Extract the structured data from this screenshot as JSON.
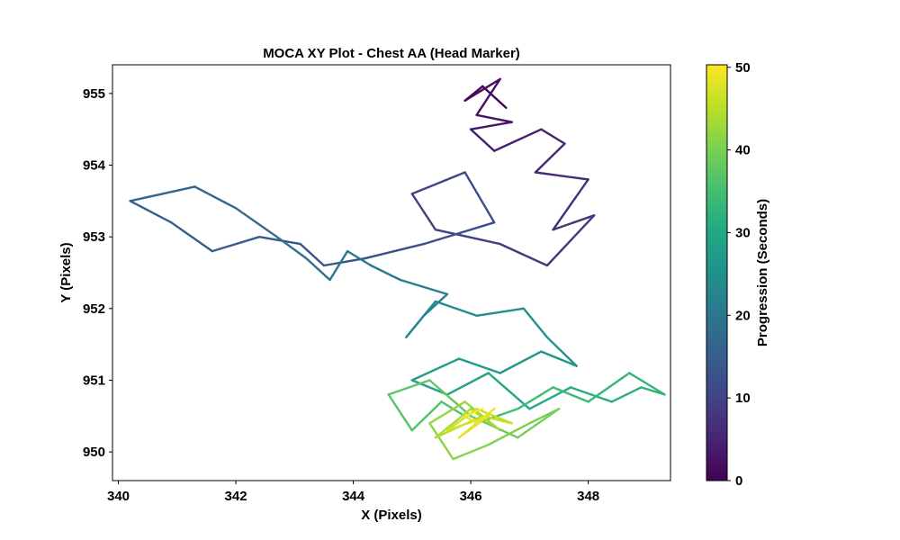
{
  "chart_data": {
    "type": "line",
    "title": "MOCA XY Plot - Chest AA (Head Marker)",
    "xlabel": "X (Pixels)",
    "ylabel": "Y (Pixels)",
    "xlim": [
      339.9,
      349.4
    ],
    "ylim": [
      949.6,
      955.4
    ],
    "x_ticks": [
      340,
      342,
      344,
      346,
      348
    ],
    "y_ticks": [
      950,
      951,
      952,
      953,
      954,
      955
    ],
    "grid": false,
    "colorbar": {
      "label": "Progression (Seconds)",
      "range": [
        0,
        50.3
      ],
      "ticks": [
        0,
        10,
        20,
        30,
        40,
        50
      ],
      "colormap": "viridis"
    },
    "series": [
      {
        "time_values": [
          0,
          0.6,
          1.2,
          1.8,
          2.4,
          3.0,
          3.6,
          4.2,
          4.8,
          5.4,
          6.0,
          6.6,
          7.2,
          7.8,
          8.4,
          9.0,
          9.6,
          10.2,
          10.8,
          11.4,
          12.0,
          12.6,
          13.2,
          13.8,
          14.4,
          15.0,
          15.6,
          16.2,
          16.8,
          17.4,
          18.0,
          18.6,
          19.2,
          19.8,
          20.4,
          21.0,
          21.6,
          22.2,
          22.8,
          23.4,
          24.0,
          24.6,
          25.2,
          25.8,
          26.4,
          27.0,
          27.6,
          28.2,
          28.8,
          29.4,
          30.0,
          30.6,
          31.2,
          31.8,
          32.4,
          33.0,
          33.6,
          34.2,
          34.8,
          35.4,
          36.0,
          36.6,
          37.2,
          37.8,
          38.4,
          39.0,
          39.6,
          40.2,
          40.8,
          41.4,
          42.0,
          42.6,
          43.2,
          43.8,
          44.4,
          45.0,
          45.6,
          46.2,
          46.8,
          47.4,
          48.0,
          48.6,
          49.2,
          49.8,
          50.3
        ],
        "x_values": [
          346.6,
          346.2,
          345.9,
          346.5,
          346.1,
          346.7,
          346.0,
          346.4,
          347.2,
          347.6,
          347.1,
          348.0,
          347.4,
          348.1,
          347.3,
          346.5,
          345.4,
          345.0,
          345.9,
          346.4,
          345.2,
          344.2,
          343.5,
          343.1,
          342.4,
          341.6,
          340.9,
          340.2,
          341.3,
          342.0,
          342.7,
          343.2,
          343.6,
          343.9,
          344.3,
          344.8,
          345.6,
          345.2,
          344.9,
          345.4,
          346.1,
          346.9,
          347.3,
          347.8,
          347.2,
          346.5,
          345.8,
          345.0,
          345.6,
          346.3,
          347.0,
          347.7,
          348.4,
          348.9,
          349.3,
          348.7,
          348.0,
          347.4,
          346.8,
          346.1,
          345.5,
          345.0,
          344.6,
          345.3,
          346.0,
          346.8,
          347.5,
          347.0,
          346.3,
          345.7,
          345.3,
          345.9,
          346.5,
          346.0,
          345.4,
          346.2,
          346.7,
          346.1,
          345.6,
          346.3,
          345.8,
          346.4,
          346.1,
          345.9,
          346.2
        ],
        "y_values": [
          954.8,
          955.1,
          954.9,
          955.2,
          954.7,
          954.6,
          954.5,
          954.2,
          954.5,
          954.3,
          953.9,
          953.8,
          953.1,
          953.3,
          952.6,
          952.9,
          953.1,
          953.6,
          953.9,
          953.2,
          952.9,
          952.7,
          952.6,
          952.9,
          953.0,
          952.8,
          953.2,
          953.5,
          953.7,
          953.4,
          953.0,
          952.7,
          952.4,
          952.8,
          952.6,
          952.4,
          952.2,
          951.9,
          951.6,
          952.1,
          951.9,
          952.0,
          951.6,
          951.2,
          951.4,
          951.1,
          951.3,
          951.0,
          950.8,
          951.1,
          950.6,
          950.9,
          950.7,
          950.9,
          950.8,
          951.1,
          950.7,
          950.9,
          950.6,
          950.4,
          950.7,
          950.3,
          950.8,
          951.0,
          950.5,
          950.2,
          950.6,
          950.4,
          950.1,
          949.9,
          950.4,
          950.7,
          950.3,
          950.6,
          950.2,
          950.5,
          950.4,
          950.6,
          950.3,
          950.5,
          950.2,
          950.6,
          950.4,
          950.5,
          950.6
        ]
      }
    ]
  }
}
